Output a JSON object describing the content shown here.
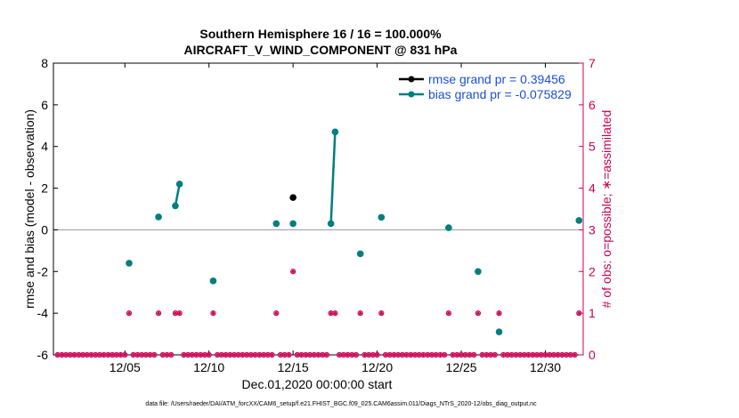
{
  "chart_data": {
    "type": "scatter",
    "title": "Southern Hemisphere 16 / 16 = 100.000%",
    "subtitle": "AIRCRAFT_V_WIND_COMPONENT @ 831 hPa",
    "xlabel": "Dec.01,2020 00:00:00 start",
    "ylabel": "rmse and bias (model - observation)",
    "y2label": "# of obs: o=possible; ∗=assimilated",
    "footer": "data file: /Users/raeder/DAI/ATM_forcXX/CAM6_setup/f.e21.FHIST_BGC.f09_025.CAM6assim.011/Diags_NTrS_2020-12/obs_diag_output.nc",
    "xlim": [
      0.75,
      32.25
    ],
    "ylim": [
      -6,
      8
    ],
    "y2lim": [
      0,
      7
    ],
    "x_ticks": [
      5,
      10,
      15,
      20,
      25,
      30
    ],
    "x_tick_labels": [
      "12/05",
      "12/10",
      "12/15",
      "12/20",
      "12/25",
      "12/30"
    ],
    "y_ticks": [
      -6,
      -4,
      -2,
      0,
      2,
      4,
      6,
      8
    ],
    "y2_ticks": [
      0,
      1,
      2,
      3,
      4,
      5,
      6,
      7
    ],
    "grid": false,
    "legend_position": "top-right",
    "colors": {
      "rmse": "#000000",
      "bias": "#007e7e",
      "obs": "#cc0052",
      "zero_line": "#999999"
    },
    "series": [
      {
        "name": "rmse grand pr = 0.39456",
        "color": "#000000",
        "points": [
          [
            15.0,
            1.55
          ]
        ]
      },
      {
        "name": "bias grand pr = -0.075829",
        "color": "#007e7e",
        "points": [
          [
            5.25,
            -1.6
          ],
          [
            7.0,
            0.62
          ],
          [
            8.0,
            1.15
          ],
          [
            8.25,
            2.2
          ],
          [
            10.25,
            -2.45
          ],
          [
            14.0,
            0.3
          ],
          [
            15.0,
            0.3
          ],
          [
            17.25,
            0.3
          ],
          [
            17.5,
            4.7
          ],
          [
            19.0,
            -1.15
          ],
          [
            20.25,
            0.6
          ],
          [
            24.25,
            0.1
          ],
          [
            26.0,
            -2.0
          ],
          [
            27.25,
            -4.9
          ],
          [
            32.0,
            0.45
          ]
        ],
        "segments": [
          [
            [
              8.0,
              1.15
            ],
            [
              8.25,
              2.2
            ]
          ],
          [
            [
              17.25,
              0.3
            ],
            [
              17.5,
              4.7
            ]
          ]
        ]
      }
    ],
    "obs_counts": {
      "axis": "right",
      "nonzero": [
        [
          5.25,
          1
        ],
        [
          7.0,
          1
        ],
        [
          8.0,
          1
        ],
        [
          8.25,
          1
        ],
        [
          10.25,
          1
        ],
        [
          14.0,
          1
        ],
        [
          15.0,
          2
        ],
        [
          17.25,
          1
        ],
        [
          17.5,
          1
        ],
        [
          19.0,
          1
        ],
        [
          20.25,
          1
        ],
        [
          24.25,
          1
        ],
        [
          26.0,
          1
        ],
        [
          27.25,
          1
        ],
        [
          32.0,
          1
        ]
      ],
      "zero_interval": 0.25
    }
  }
}
